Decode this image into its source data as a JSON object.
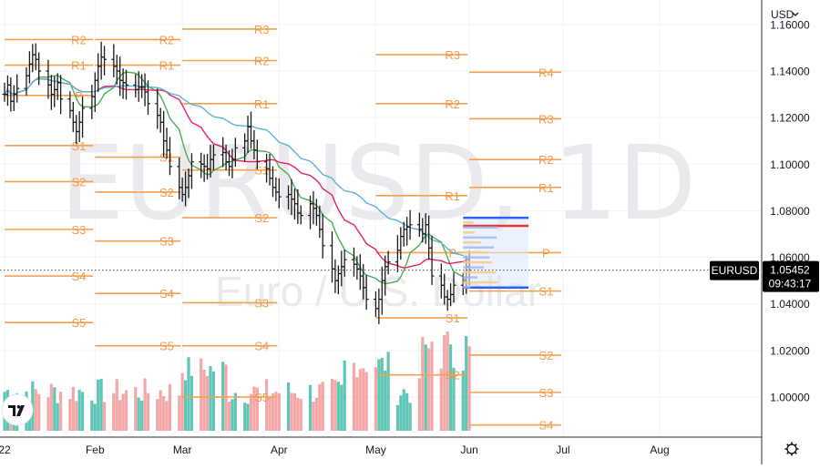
{
  "chart_data": {
    "type": "ohlc",
    "symbol": "EURUSD",
    "timeframe": "1D",
    "watermark_line1": "EURUSD, 1D",
    "watermark_line2": "Euro / U.S. Dollar",
    "currency_menu": "USD",
    "ylim": [
      0.987,
      1.157
    ],
    "y_ticks": [
      "1.00000",
      "1.02000",
      "1.04000",
      "1.06000",
      "1.08000",
      "1.10000",
      "1.12000",
      "1.14000",
      "1.16000"
    ],
    "x_ticks": [
      {
        "label": "22",
        "date": "2022-01-03"
      },
      {
        "label": "Feb",
        "date": "2022-02-01"
      },
      {
        "label": "Mar",
        "date": "2022-03-01"
      },
      {
        "label": "Apr",
        "date": "2022-04-01"
      },
      {
        "label": "May",
        "date": "2022-05-02"
      },
      {
        "label": "Jun",
        "date": "2022-06-01"
      },
      {
        "label": "Jul",
        "date": "2022-07-01"
      },
      {
        "label": "Aug",
        "date": "2022-08-01"
      }
    ],
    "x_range": [
      "2022-01-03",
      "2022-09-01"
    ],
    "last_price": "1.05452",
    "last_price_value": 1.05452,
    "countdown": "09:43:17",
    "price_label": "EURUSD",
    "monthly_pivots": [
      {
        "start": "2022-01-03",
        "end": "2022-02-01",
        "levels": [
          {
            "label": "R2",
            "value": 1.1535
          },
          {
            "label": "R1",
            "value": 1.1425
          },
          {
            "label": "P",
            "value": 1.1295
          },
          {
            "label": "S1",
            "value": 1.108
          },
          {
            "label": "S2",
            "value": 1.0925
          },
          {
            "label": "S3",
            "value": 1.072
          },
          {
            "label": "S4",
            "value": 1.052
          },
          {
            "label": "S5",
            "value": 1.032
          }
        ]
      },
      {
        "start": "2022-02-01",
        "end": "2022-03-01",
        "levels": [
          {
            "label": "R2",
            "value": 1.1535
          },
          {
            "label": "R1",
            "value": 1.1425
          },
          {
            "label": "S1",
            "value": 1.103
          },
          {
            "label": "S2",
            "value": 1.088
          },
          {
            "label": "S3",
            "value": 1.067
          },
          {
            "label": "S4",
            "value": 1.0445
          },
          {
            "label": "S5",
            "value": 1.022
          }
        ]
      },
      {
        "start": "2022-03-01",
        "end": "2022-04-01",
        "levels": [
          {
            "label": "R3",
            "value": 1.158
          },
          {
            "label": "R2",
            "value": 1.1445
          },
          {
            "label": "R1",
            "value": 1.126
          },
          {
            "label": "S1",
            "value": 1.0975
          },
          {
            "label": "S2",
            "value": 1.077
          },
          {
            "label": "S3",
            "value": 1.0405
          },
          {
            "label": "S4",
            "value": 1.022
          },
          {
            "label": "S5",
            "value": 1.0
          }
        ]
      },
      {
        "start": "2022-05-02",
        "end": "2022-06-01",
        "levels": [
          {
            "label": "R3",
            "value": 1.147
          },
          {
            "label": "R2",
            "value": 1.126
          },
          {
            "label": "R1",
            "value": 1.0865
          },
          {
            "label": "P",
            "value": 1.062
          },
          {
            "label": "S1",
            "value": 1.034
          },
          {
            "label": "S2",
            "value": 1.0095
          }
        ]
      },
      {
        "start": "2022-06-01",
        "end": "2022-07-01",
        "levels": [
          {
            "label": "R4",
            "value": 1.1395
          },
          {
            "label": "R3",
            "value": 1.1195
          },
          {
            "label": "R2",
            "value": 1.102
          },
          {
            "label": "R1",
            "value": 1.09
          },
          {
            "label": "P",
            "value": 1.062
          },
          {
            "label": "S1",
            "value": 1.0455
          },
          {
            "label": "S2",
            "value": 1.018
          },
          {
            "label": "S3",
            "value": 1.002
          },
          {
            "label": "S4",
            "value": 0.988
          }
        ]
      }
    ],
    "closes": [
      1.13,
      1.134,
      1.127,
      1.13,
      1.1325,
      1.138,
      1.143,
      1.147,
      1.145,
      1.14,
      1.134,
      1.13,
      1.132,
      1.135,
      1.128,
      1.123,
      1.118,
      1.114,
      1.118,
      1.124,
      1.129,
      1.136,
      1.142,
      1.146,
      1.145,
      1.142,
      1.14,
      1.136,
      1.135,
      1.134,
      1.132,
      1.133,
      1.133,
      1.131,
      1.126,
      1.121,
      1.118,
      1.11,
      1.106,
      1.099,
      1.09,
      1.087,
      1.09,
      1.095,
      1.101,
      1.1,
      1.099,
      1.098,
      1.102,
      1.104,
      1.105,
      1.101,
      1.099,
      1.102,
      1.107,
      1.11,
      1.116,
      1.11,
      1.106,
      1.101,
      1.098,
      1.094,
      1.09,
      1.088,
      1.086,
      1.087,
      1.085,
      1.083,
      1.079,
      1.078,
      1.083,
      1.081,
      1.078,
      1.072,
      1.065,
      1.055,
      1.05,
      1.053,
      1.056,
      1.059,
      1.057,
      1.055,
      1.052,
      1.047,
      1.042,
      1.038,
      1.042,
      1.05,
      1.056,
      1.058,
      1.063,
      1.069,
      1.072,
      1.073,
      1.074,
      1.072,
      1.07,
      1.074,
      1.064,
      1.052,
      1.048,
      1.043,
      1.042,
      1.044,
      1.048,
      1.05,
      1.056,
      1.0545
    ],
    "moving_averages": [
      {
        "name": "MA short",
        "color": "#4caf50",
        "period": 9
      },
      {
        "name": "MA mid",
        "color": "#e91e63",
        "period": 20
      },
      {
        "name": "MA long",
        "color": "#5ab4d8",
        "period": 40
      }
    ],
    "volume_color_up": "#2bb3a0",
    "volume_color_down": "#f28b8b",
    "vp_box_high": 1.077,
    "vp_box_low": 1.047,
    "vp_poc": 1.0735,
    "vp_box_start": "2022-05-30",
    "vp_box_end": "2022-06-20",
    "grid": true
  }
}
